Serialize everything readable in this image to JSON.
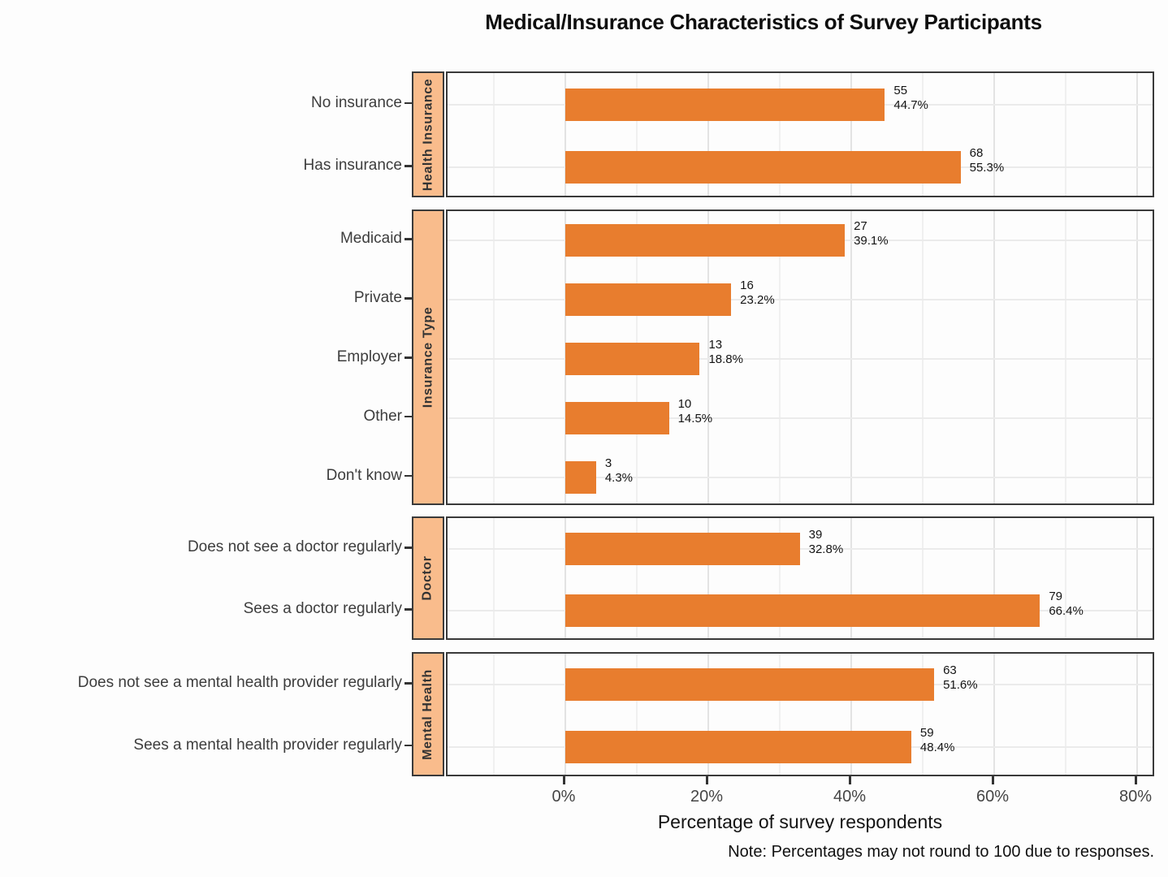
{
  "chart_data": {
    "type": "bar",
    "orientation": "horizontal",
    "title": "Medical/Insurance Characteristics of Survey Participants",
    "xlabel": "Percentage of survey respondents",
    "note": "Note: Percentages may not round to 100 due to responses.",
    "bar_color": "#E87D2E",
    "strip_fill": "#F9BC8C",
    "x_axis": {
      "ticks": [
        0,
        20,
        40,
        60,
        80
      ],
      "tick_labels": [
        "0%",
        "20%",
        "40%",
        "60%",
        "80%"
      ],
      "minor_ticks": [
        -10,
        10,
        30,
        50,
        70
      ],
      "grid": true
    },
    "facets": [
      {
        "label": "Health Insurance",
        "rows": [
          {
            "category": "No insurance",
            "count": "55",
            "pct": 44.7,
            "pct_label": "44.7%"
          },
          {
            "category": "Has insurance",
            "count": "68",
            "pct": 55.3,
            "pct_label": "55.3%"
          }
        ]
      },
      {
        "label": "Insurance Type",
        "rows": [
          {
            "category": "Medicaid",
            "count": "27",
            "pct": 39.1,
            "pct_label": "39.1%"
          },
          {
            "category": "Private",
            "count": "16",
            "pct": 23.2,
            "pct_label": "23.2%"
          },
          {
            "category": "Employer",
            "count": "13",
            "pct": 18.8,
            "pct_label": "18.8%"
          },
          {
            "category": "Other",
            "count": "10",
            "pct": 14.5,
            "pct_label": "14.5%"
          },
          {
            "category": "Don't know",
            "count": "3",
            "pct": 4.3,
            "pct_label": "4.3%"
          }
        ]
      },
      {
        "label": "Doctor",
        "rows": [
          {
            "category": "Does not see a doctor regularly",
            "count": "39",
            "pct": 32.8,
            "pct_label": "32.8%"
          },
          {
            "category": "Sees a doctor regularly",
            "count": "79",
            "pct": 66.4,
            "pct_label": "66.4%"
          }
        ]
      },
      {
        "label": "Mental Health",
        "rows": [
          {
            "category": "Does not see a mental health provider regularly",
            "count": "63",
            "pct": 51.6,
            "pct_label": "51.6%"
          },
          {
            "category": "Sees a mental health provider regularly",
            "count": "59",
            "pct": 48.4,
            "pct_label": "48.4%"
          }
        ]
      }
    ]
  }
}
